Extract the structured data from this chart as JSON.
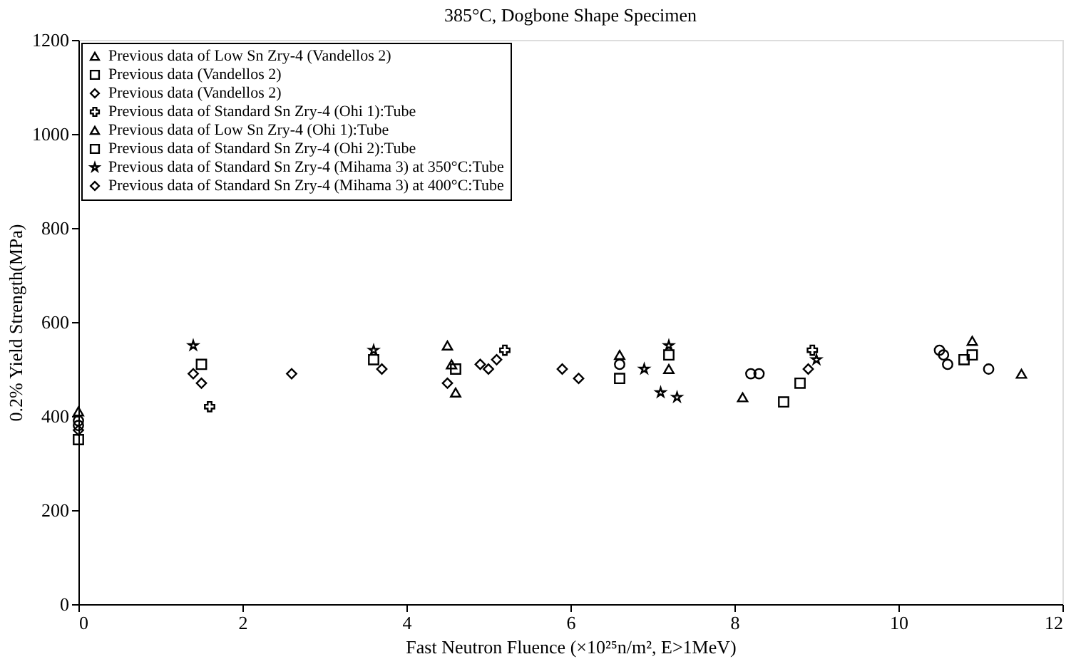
{
  "chart_data": {
    "type": "scatter",
    "title": "385°C, Dogbone Shape Specimen",
    "xlabel": "Fast Neutron Fluence (×10²⁵n/m², E>1MeV)",
    "ylabel": "0.2% Yield Strength(MPa)",
    "xlim": [
      0,
      12
    ],
    "xticks": [
      0,
      2,
      4,
      6,
      8,
      10,
      12
    ],
    "ylim": [
      0,
      1200
    ],
    "yticks": [
      0,
      200,
      400,
      600,
      800,
      1000,
      1200
    ],
    "grid": false,
    "legend": "top left",
    "series": [
      {
        "color": "#000000",
        "marker": "circle",
        "x": [
          0,
          6.6,
          10.5,
          10.55
        ],
        "values": [
          390,
          510,
          540,
          530
        ]
      },
      {
        "color": "#000000",
        "marker": "circle",
        "x": [
          0,
          8.2,
          8.3,
          10.6,
          11.1
        ],
        "values": [
          380,
          490,
          490,
          510,
          500
        ]
      },
      {
        "name": "Previous data of Low Sn Zry-4 (Vandellos 2)",
        "color": "#000000",
        "marker": "triangle",
        "x": [
          0,
          4.5,
          4.55,
          4.6,
          8.1,
          10.9,
          11.5
        ],
        "values": [
          410,
          550,
          510,
          450,
          440,
          560,
          490
        ]
      },
      {
        "name": "Previous data (Vandellos 2)",
        "color": "#000000",
        "marker": "square",
        "x": [
          0,
          4.6,
          8.6,
          8.8,
          10.8,
          10.9
        ],
        "values": [
          350,
          500,
          430,
          470,
          520,
          530
        ]
      },
      {
        "name": "Previous data (Vandellos 2)",
        "color": "#000000",
        "marker": "diamond",
        "x": [
          0,
          4.9,
          5.0,
          5.1,
          8.9
        ],
        "values": [
          370,
          510,
          500,
          520,
          500
        ]
      },
      {
        "name": "Previous data of Standard Sn Zry-4 (Ohi 1):Tube",
        "color": "#000000",
        "marker": "cross",
        "x": [
          1.6,
          5.2,
          8.95
        ],
        "values": [
          420,
          540,
          540
        ]
      },
      {
        "name": "Previous data of Low Sn Zry-4 (Ohi 1):Tube",
        "color": "#000000",
        "marker": "triangle",
        "x": [
          6.6,
          7.2
        ],
        "values": [
          530,
          500
        ]
      },
      {
        "name": "Previous data of Standard Sn Zry-4 (Ohi 2):Tube",
        "color": "#000000",
        "marker": "square",
        "x": [
          1.5,
          3.6,
          6.6,
          7.2
        ],
        "values": [
          510,
          520,
          480,
          530
        ]
      },
      {
        "name": "Previous data of Standard Sn Zry-4 (Mihama 3) at 350°C:Tube",
        "color": "#000000",
        "marker": "star",
        "x": [
          1.4,
          3.6,
          6.9,
          7.1,
          7.3,
          7.2,
          9.0
        ],
        "values": [
          550,
          540,
          500,
          450,
          440,
          550,
          520
        ]
      },
      {
        "name": "Previous data of Standard Sn Zry-4 (Mihama 3) at 400°C:Tube",
        "color": "#000000",
        "marker": "diamond",
        "x": [
          1.4,
          1.5,
          2.6,
          3.7,
          4.5,
          5.9,
          6.1
        ],
        "values": [
          490,
          470,
          490,
          500,
          470,
          500,
          480
        ]
      }
    ]
  }
}
